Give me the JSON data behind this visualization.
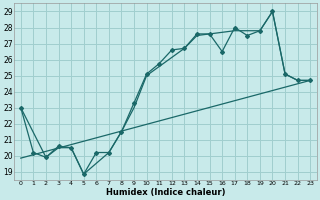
{
  "xlabel": "Humidex (Indice chaleur)",
  "bg_color": "#c8eaea",
  "grid_color": "#a0cece",
  "line_color": "#1a6868",
  "xlim": [
    -0.5,
    23.5
  ],
  "ylim": [
    18.5,
    29.5
  ],
  "xticks": [
    0,
    1,
    2,
    3,
    4,
    5,
    6,
    7,
    8,
    9,
    10,
    11,
    12,
    13,
    14,
    15,
    16,
    17,
    18,
    19,
    20,
    21,
    22,
    23
  ],
  "yticks": [
    19,
    20,
    21,
    22,
    23,
    24,
    25,
    26,
    27,
    28,
    29
  ],
  "series1_x": [
    0,
    1,
    2,
    3,
    4,
    5,
    6,
    7,
    8,
    9,
    10,
    11,
    12,
    13,
    14,
    15,
    16,
    17,
    18,
    19,
    20,
    21,
    22,
    23
  ],
  "series1_y": [
    23.0,
    20.2,
    19.9,
    20.6,
    20.5,
    18.85,
    20.2,
    20.2,
    21.5,
    23.3,
    25.1,
    25.75,
    26.6,
    26.7,
    27.6,
    27.6,
    26.5,
    28.0,
    27.5,
    27.8,
    29.0,
    25.1,
    24.7,
    24.7
  ],
  "series2_x": [
    0,
    23
  ],
  "series2_y": [
    19.85,
    24.7
  ],
  "series3_x": [
    0,
    2,
    3,
    4,
    5,
    7,
    8,
    9,
    10,
    13,
    14,
    15,
    17,
    18,
    19,
    20,
    21,
    22,
    23
  ],
  "series3_y": [
    23.0,
    19.9,
    20.5,
    20.5,
    18.85,
    20.2,
    21.5,
    23.0,
    25.0,
    26.7,
    27.5,
    27.6,
    27.8,
    27.8,
    27.8,
    29.0,
    25.1,
    24.7,
    24.7
  ]
}
